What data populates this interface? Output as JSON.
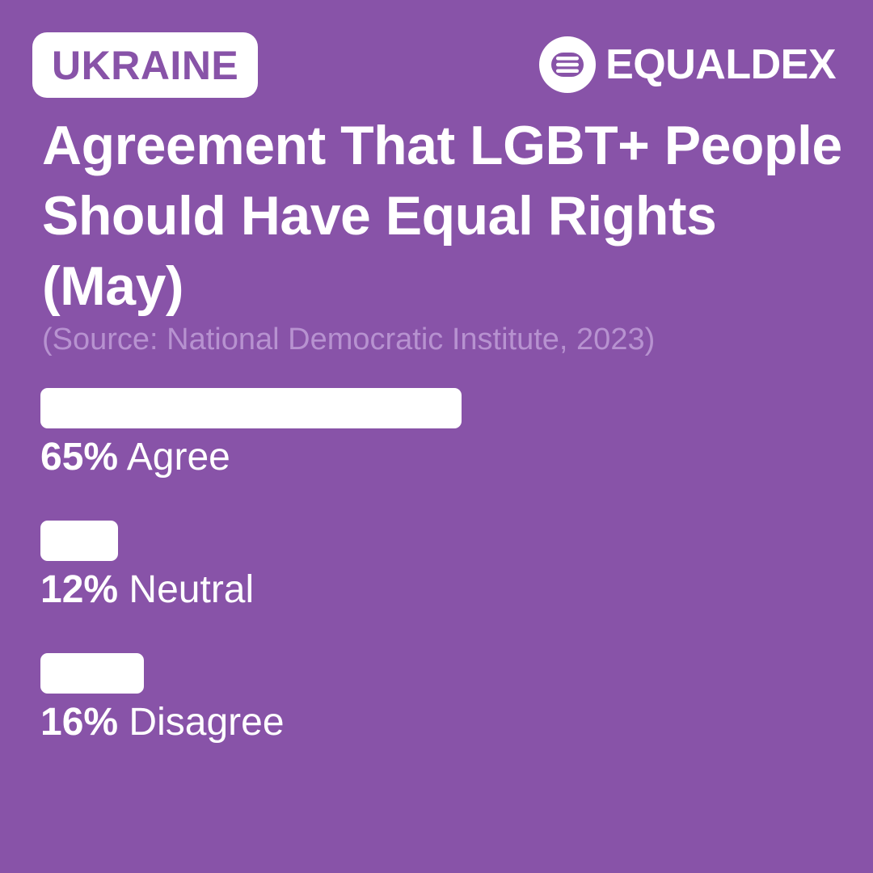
{
  "badge": {
    "country": "UKRAINE"
  },
  "brand": {
    "name": "EQUALDEX",
    "icon": "equaldex-logo-icon"
  },
  "colors": {
    "background": "#8853a8",
    "bar": "#ffffff",
    "source_text": "#b792d0"
  },
  "chart_data": {
    "type": "bar",
    "orientation": "horizontal",
    "title": "Agreement That LGBT+ People Should Have Equal Rights (May)",
    "subtitle": "(Source: National Democratic Institute, 2023)",
    "categories": [
      "Agree",
      "Neutral",
      "Disagree"
    ],
    "values": [
      65,
      12,
      16
    ],
    "value_labels": [
      "65%",
      "12%",
      "16%"
    ],
    "xlim": [
      0,
      100
    ],
    "grid": false
  }
}
